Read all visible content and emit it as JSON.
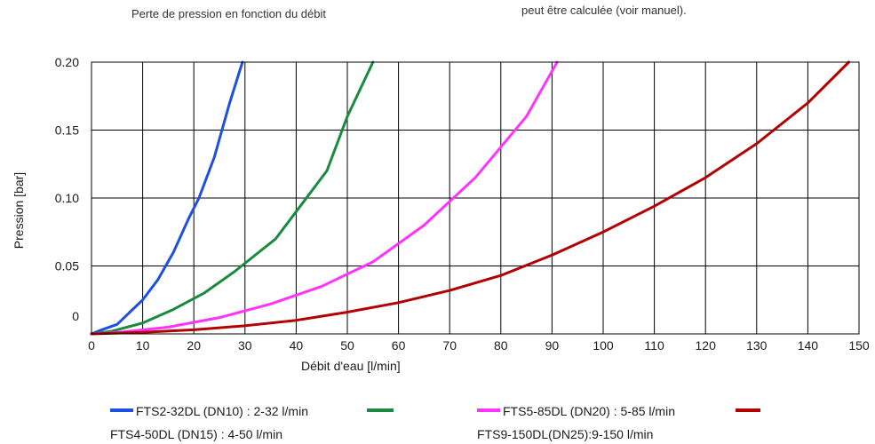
{
  "captions": {
    "left": "Perte de pression en fonction du débit",
    "right": "peut être calculée (voir manuel)."
  },
  "chart_data": {
    "type": "line",
    "xlabel": "Débit d'eau [l/min]",
    "ylabel": "Pression [bar]",
    "xlim": [
      0,
      150
    ],
    "ylim": [
      0,
      0.2
    ],
    "x_ticks": [
      "0",
      "10",
      "20",
      "30",
      "40",
      "50",
      "60",
      "70",
      "80",
      "90",
      "100",
      "110",
      "120",
      "130",
      "140",
      "150"
    ],
    "y_ticks": [
      "0",
      "0.05",
      "0.10",
      "0.15",
      "0.20"
    ],
    "grid": true,
    "legend_position": "bottom",
    "series": [
      {
        "name": "FTS2-32DL (DN10) : 2-32 l/min",
        "color": "#1f4fe0",
        "x": [
          0,
          2,
          5,
          10,
          13,
          16,
          19,
          21,
          24,
          27,
          29.5
        ],
        "y": [
          0,
          0.003,
          0.007,
          0.025,
          0.04,
          0.06,
          0.085,
          0.1,
          0.13,
          0.17,
          0.2
        ]
      },
      {
        "name": "FTS4-50DL (DN15) : 4-50 l/min",
        "color": "#1a8a3e",
        "x": [
          0,
          4,
          10,
          16,
          22,
          28,
          32,
          36,
          40,
          46,
          50,
          55
        ],
        "y": [
          0,
          0.002,
          0.008,
          0.018,
          0.03,
          0.046,
          0.058,
          0.07,
          0.09,
          0.12,
          0.16,
          0.2
        ]
      },
      {
        "name": "FTS5-85DL (DN20) : 5-85 l/min",
        "color": "#ff33ff",
        "x": [
          0,
          5,
          15,
          25,
          35,
          45,
          55,
          65,
          75,
          85,
          91
        ],
        "y": [
          0,
          0.001,
          0.005,
          0.012,
          0.022,
          0.035,
          0.053,
          0.08,
          0.115,
          0.16,
          0.2
        ]
      },
      {
        "name": "FTS9-150DL(DN25):9-150 l/min",
        "color": "#b30000",
        "x": [
          0,
          9,
          20,
          30,
          40,
          50,
          60,
          70,
          80,
          90,
          100,
          110,
          120,
          130,
          140,
          148
        ],
        "y": [
          0,
          0.001,
          0.003,
          0.006,
          0.01,
          0.016,
          0.023,
          0.032,
          0.043,
          0.058,
          0.075,
          0.094,
          0.115,
          0.14,
          0.17,
          0.2
        ]
      }
    ]
  }
}
